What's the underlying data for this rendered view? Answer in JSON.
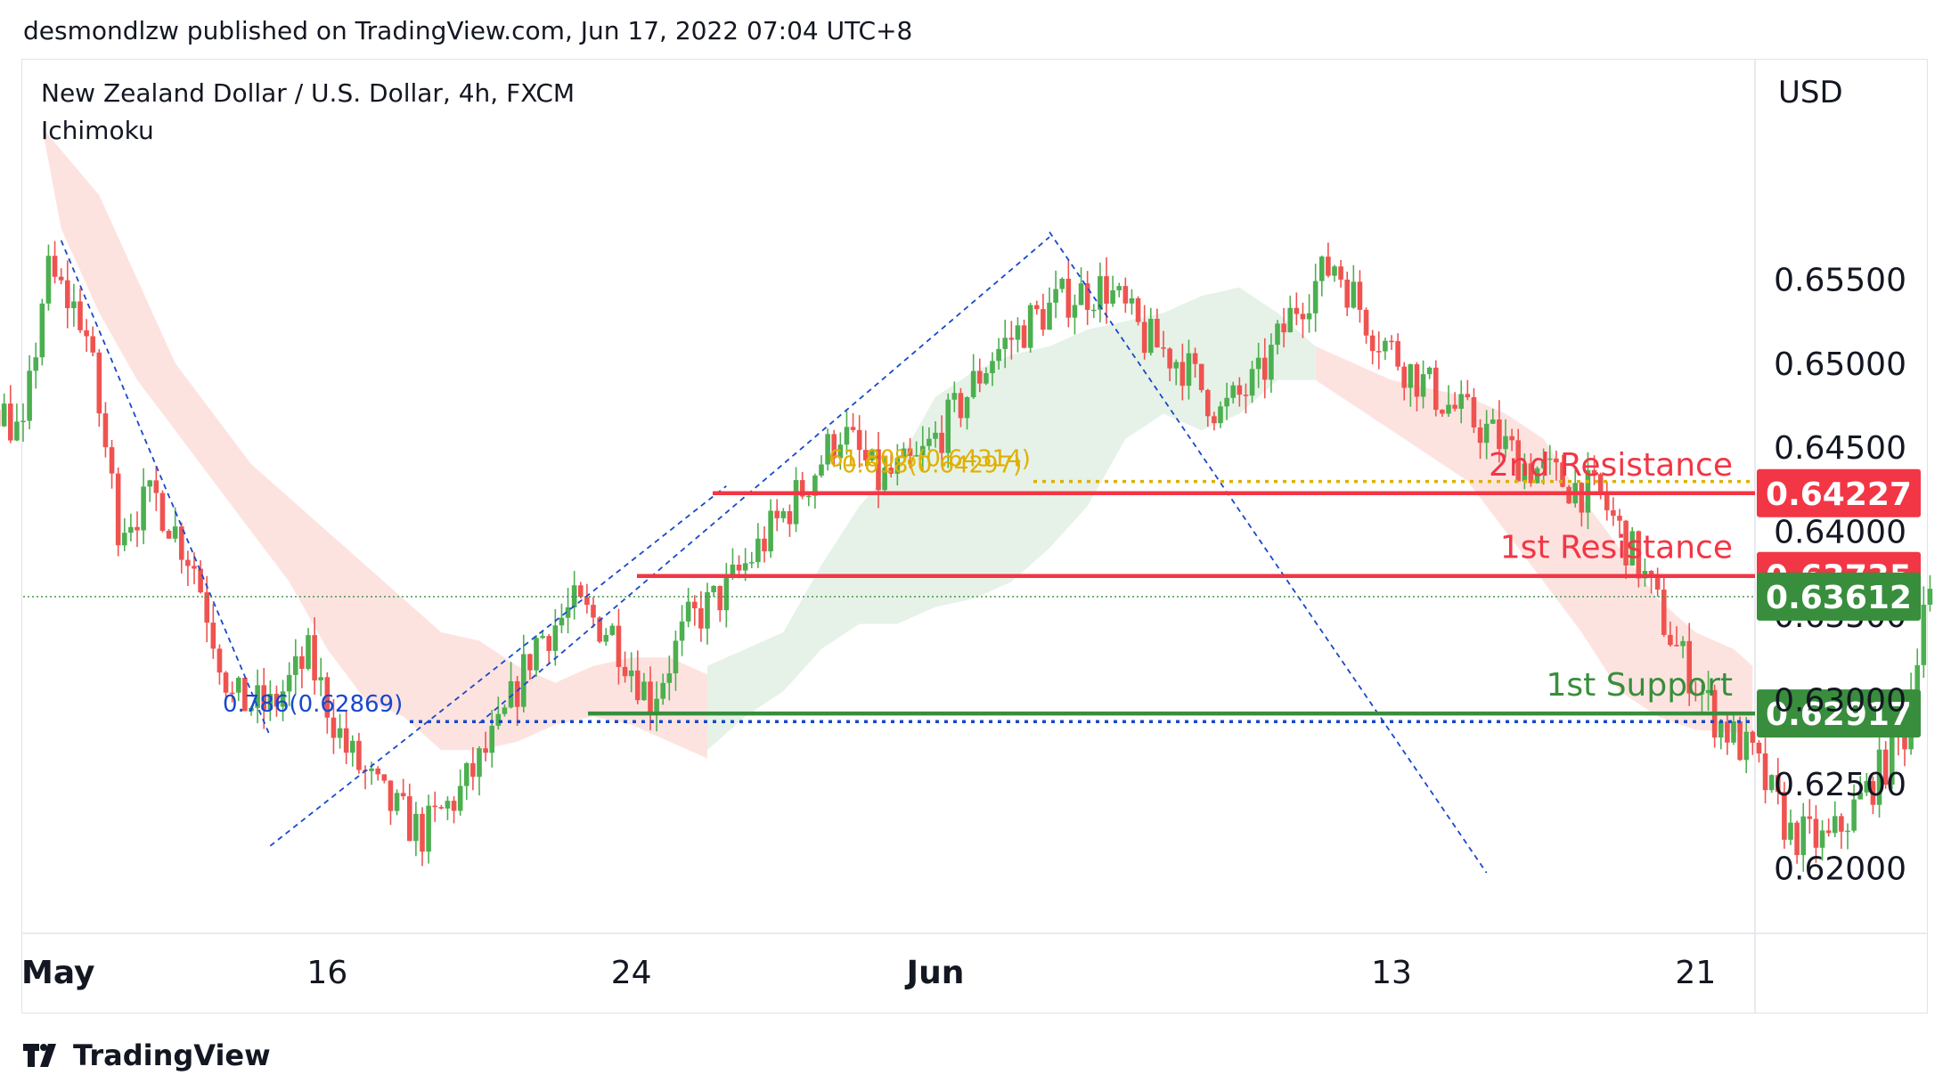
{
  "header": {
    "publisher": "desmondlzw published on TradingView.com, Jun 17, 2022 07:04 UTC+8"
  },
  "chart_header": {
    "symbol": "New Zealand Dollar / U.S. Dollar, 4h, FXCM",
    "indicator": "Ichimoku"
  },
  "price_axis": {
    "currency": "USD"
  },
  "footer": {
    "brand": "TradingView"
  },
  "colors": {
    "up": "#26a69a",
    "up_body": "#4caf50",
    "down": "#ef5350",
    "resistance": "#f23645",
    "support": "#388e3c",
    "cloud_bear": "#fcd9d6",
    "cloud_bull": "#e3f1e4",
    "fib_blue": "#1848cc",
    "fib_gold": "#e0b000"
  },
  "chart_data": {
    "type": "candlestick",
    "pair": "NZDUSD",
    "timeframe": "4h",
    "ylim": [
      0.6161,
      0.6681
    ],
    "yticks": [
      "0.62000",
      "0.62500",
      "0.63000",
      "0.63500",
      "0.64000",
      "0.64500",
      "0.65000",
      "0.65500"
    ],
    "xticks": [
      {
        "label": "May",
        "day": 8
      },
      {
        "label": "16",
        "day": 16
      },
      {
        "label": "24",
        "day": 24
      },
      {
        "label": "Jun",
        "day": 32
      },
      {
        "label": "13",
        "day": 44
      },
      {
        "label": "21",
        "day": 52
      }
    ],
    "levels": [
      {
        "label": "2nd Resistance",
        "price": 0.64227,
        "tag": "0.64227",
        "kind": "resistance"
      },
      {
        "label": "1st Resistance",
        "price": 0.63735,
        "tag": "0.63735",
        "kind": "resistance"
      },
      {
        "label": "1st Support",
        "price": 0.62917,
        "tag": "0.62917",
        "kind": "support"
      }
    ],
    "last_price": {
      "price": 0.63612,
      "tag": "0.63612"
    },
    "fib_annotations": [
      {
        "text": "0.786(0.62869)",
        "price": 0.62869,
        "kind": "blue"
      },
      {
        "text": "61.80%(0.64314)",
        "price": 0.64314,
        "kind": "gold"
      },
      {
        "text": "0.618(0.64297)",
        "price": 0.64297,
        "kind": "gold"
      }
    ],
    "trendlines_dashed": [
      {
        "from": [
          9.0,
          0.6573
        ],
        "to": [
          14.5,
          0.6278
        ]
      },
      {
        "from": [
          14.5,
          0.6213
        ],
        "to": [
          26.5,
          0.6427
        ]
      },
      {
        "from": [
          20.0,
          0.6286
        ],
        "to": [
          35.0,
          0.6575
        ]
      },
      {
        "from": [
          35.0,
          0.6578
        ],
        "to": [
          46.5,
          0.6197
        ]
      }
    ],
    "cloud_bear": [
      [
        [
          8.5,
          0.664
        ],
        [
          10,
          0.66
        ],
        [
          11,
          0.655
        ],
        [
          12,
          0.65
        ],
        [
          13,
          0.647
        ],
        [
          14,
          0.644
        ],
        [
          15,
          0.642
        ],
        [
          16,
          0.64
        ],
        [
          17,
          0.638
        ],
        [
          18,
          0.636
        ],
        [
          19,
          0.634
        ],
        [
          20,
          0.6335
        ],
        [
          21,
          0.632
        ],
        [
          22,
          0.631
        ],
        [
          23,
          0.632
        ],
        [
          24,
          0.6325
        ],
        [
          25,
          0.6325
        ],
        [
          26,
          0.6315
        ],
        [
          26,
          0.6265
        ],
        [
          25,
          0.6275
        ],
        [
          24,
          0.6285
        ],
        [
          23,
          0.629
        ],
        [
          22,
          0.6285
        ],
        [
          21,
          0.6275
        ],
        [
          20,
          0.627
        ],
        [
          19,
          0.627
        ],
        [
          18,
          0.629
        ],
        [
          17,
          0.63
        ],
        [
          16,
          0.633
        ],
        [
          15,
          0.637
        ],
        [
          14,
          0.64
        ],
        [
          13,
          0.643
        ],
        [
          12,
          0.646
        ],
        [
          11,
          0.649
        ],
        [
          10,
          0.653
        ],
        [
          9,
          0.658
        ]
      ],
      [
        [
          42,
          0.651
        ],
        [
          44,
          0.649
        ],
        [
          46,
          0.648
        ],
        [
          47,
          0.647
        ],
        [
          48,
          0.6455
        ],
        [
          49,
          0.642
        ],
        [
          50,
          0.639
        ],
        [
          51,
          0.636
        ],
        [
          52,
          0.634
        ],
        [
          53,
          0.633
        ],
        [
          53.5,
          0.632
        ],
        [
          53.5,
          0.628
        ],
        [
          52,
          0.6282
        ],
        [
          51,
          0.629
        ],
        [
          50,
          0.6305
        ],
        [
          49,
          0.634
        ],
        [
          48,
          0.637
        ],
        [
          47,
          0.64
        ],
        [
          46,
          0.643
        ],
        [
          44,
          0.646
        ],
        [
          42,
          0.649
        ]
      ]
    ],
    "cloud_bull": [
      [
        [
          26,
          0.632
        ],
        [
          28,
          0.634
        ],
        [
          29,
          0.638
        ],
        [
          30,
          0.6415
        ],
        [
          31,
          0.644
        ],
        [
          32,
          0.648
        ],
        [
          33,
          0.6495
        ],
        [
          34,
          0.6505
        ],
        [
          35,
          0.651
        ],
        [
          36,
          0.652
        ],
        [
          37,
          0.6525
        ],
        [
          38,
          0.653
        ],
        [
          39,
          0.654
        ],
        [
          40,
          0.6545
        ],
        [
          41,
          0.653
        ],
        [
          42,
          0.651
        ],
        [
          42,
          0.649
        ],
        [
          41,
          0.649
        ],
        [
          40,
          0.647
        ],
        [
          39,
          0.646
        ],
        [
          38,
          0.647
        ],
        [
          37,
          0.6455
        ],
        [
          36,
          0.6415
        ],
        [
          35,
          0.639
        ],
        [
          34,
          0.637
        ],
        [
          33,
          0.636
        ],
        [
          32,
          0.6355
        ],
        [
          31,
          0.6345
        ],
        [
          30,
          0.6345
        ],
        [
          29,
          0.633
        ],
        [
          28,
          0.6305
        ],
        [
          27,
          0.629
        ],
        [
          26,
          0.627
        ]
      ]
    ],
    "candles_guide": [
      [
        0.0,
        0.6525
      ],
      [
        1.0,
        0.6478
      ],
      [
        2.0,
        0.642
      ],
      [
        3.0,
        0.644
      ],
      [
        4.0,
        0.643
      ],
      [
        5.0,
        0.644
      ],
      [
        6.0,
        0.643
      ],
      [
        7.0,
        0.6485
      ],
      [
        8.0,
        0.6455
      ],
      [
        8.6,
        0.6555
      ],
      [
        9.6,
        0.6525
      ],
      [
        10.5,
        0.6405
      ],
      [
        11.5,
        0.642
      ],
      [
        12.5,
        0.638
      ],
      [
        13.5,
        0.63
      ],
      [
        14.5,
        0.6295
      ],
      [
        15.5,
        0.6325
      ],
      [
        16.5,
        0.627
      ],
      [
        17.5,
        0.624
      ],
      [
        18.5,
        0.622
      ],
      [
        19.5,
        0.6245
      ],
      [
        20.5,
        0.628
      ],
      [
        21.5,
        0.6335
      ],
      [
        22.5,
        0.6355
      ],
      [
        23.5,
        0.634
      ],
      [
        24.5,
        0.63
      ],
      [
        25.5,
        0.6345
      ],
      [
        26.5,
        0.6365
      ],
      [
        27.5,
        0.6395
      ],
      [
        28.5,
        0.6425
      ],
      [
        29.5,
        0.646
      ],
      [
        30.5,
        0.643
      ],
      [
        31.5,
        0.644
      ],
      [
        32.5,
        0.647
      ],
      [
        33.5,
        0.6505
      ],
      [
        34.5,
        0.6525
      ],
      [
        35.5,
        0.654
      ],
      [
        36.5,
        0.6545
      ],
      [
        37.5,
        0.6515
      ],
      [
        38.5,
        0.65
      ],
      [
        39.5,
        0.647
      ],
      [
        40.5,
        0.649
      ],
      [
        41.5,
        0.6535
      ],
      [
        42.5,
        0.656
      ],
      [
        43.5,
        0.652
      ],
      [
        44.5,
        0.6495
      ],
      [
        45.5,
        0.6475
      ],
      [
        46.5,
        0.646
      ],
      [
        47.5,
        0.644
      ],
      [
        48.5,
        0.643
      ],
      [
        49.5,
        0.642
      ],
      [
        50.5,
        0.638
      ],
      [
        51.5,
        0.633
      ],
      [
        52.5,
        0.629
      ],
      [
        53.5,
        0.6265
      ],
      [
        54.5,
        0.622
      ],
      [
        55.5,
        0.6215
      ],
      [
        56.5,
        0.6245
      ],
      [
        57.5,
        0.628
      ],
      [
        58.0,
        0.636
      ]
    ]
  }
}
